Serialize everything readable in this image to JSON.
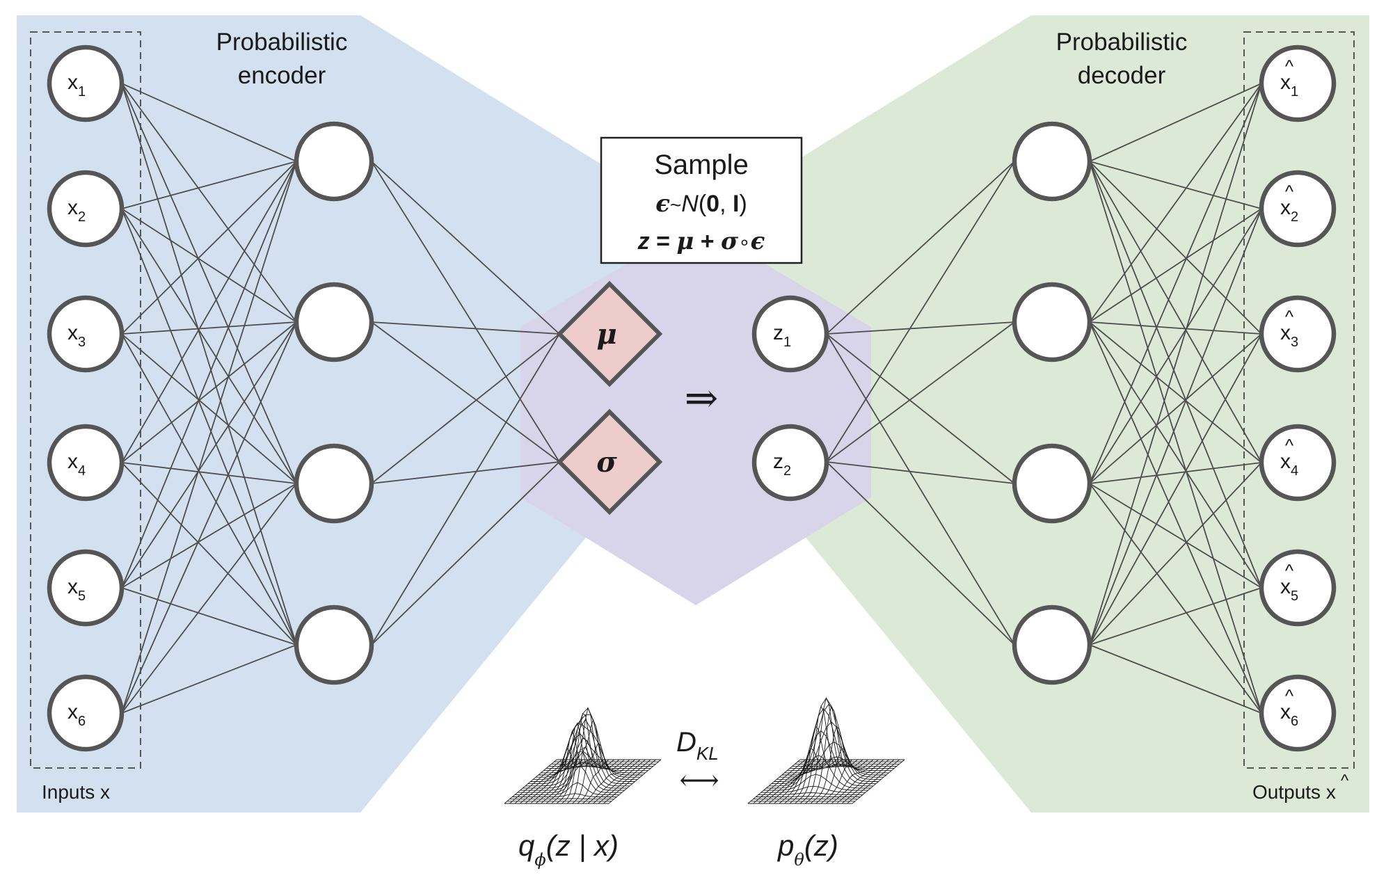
{
  "encoder": {
    "title_line1": "Probabilistic",
    "title_line2": "encoder",
    "inputs_caption": "Inputs x"
  },
  "decoder": {
    "title_line1": "Probabilistic",
    "title_line2": "decoder",
    "outputs_caption": "Outputs x",
    "hat": "^"
  },
  "inputs": [
    {
      "base": "x",
      "sub": "1"
    },
    {
      "base": "x",
      "sub": "2"
    },
    {
      "base": "x",
      "sub": "3"
    },
    {
      "base": "x",
      "sub": "4"
    },
    {
      "base": "x",
      "sub": "5"
    },
    {
      "base": "x",
      "sub": "6"
    }
  ],
  "latent": [
    {
      "base": "z",
      "sub": "1"
    },
    {
      "base": "z",
      "sub": "2"
    }
  ],
  "outputs": [
    {
      "base": "x",
      "sub": "1"
    },
    {
      "base": "x",
      "sub": "2"
    },
    {
      "base": "x",
      "sub": "3"
    },
    {
      "base": "x",
      "sub": "4"
    },
    {
      "base": "x",
      "sub": "5"
    },
    {
      "base": "x",
      "sub": "6"
    }
  ],
  "params": {
    "mu": "μ",
    "sigma": "σ"
  },
  "sample_box": {
    "title": "Sample",
    "line2": {
      "eps": "ϵ",
      "tilde": "~",
      "N": "N",
      "open": "(",
      "zero": "0",
      "comma": ", ",
      "I": "I",
      "close": ")"
    },
    "line3": {
      "z": "z",
      "eq": " = ",
      "mu": "μ",
      "plus": " + ",
      "sigma": "σ",
      "circ": "∘",
      "eps": "ϵ"
    }
  },
  "arrow": "⇒",
  "kl": {
    "D": "D",
    "sub": "KL",
    "arrow": "⟷"
  },
  "q_label": {
    "q": "q",
    "sub": "ϕ",
    "open": "(",
    "z": "z",
    "bar": " | ",
    "x": "x",
    "close": ")"
  },
  "p_label": {
    "p": "p",
    "sub": "θ",
    "open": "(",
    "z": "z",
    "close": ")"
  },
  "colors": {
    "encoder_bg": "#d2e0f0",
    "decoder_bg": "#dde9d7",
    "latent_bg": "#d8d4e9",
    "diamond": "#eecccc",
    "node_stroke": "#555555"
  }
}
